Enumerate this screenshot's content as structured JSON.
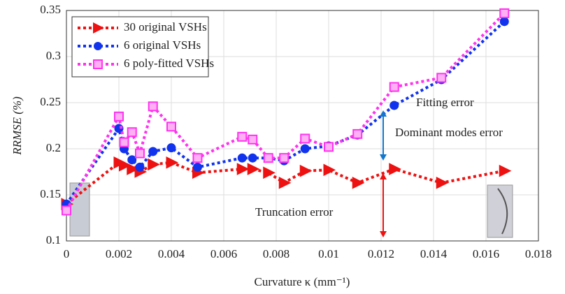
{
  "chart_data": {
    "type": "line",
    "x_label": "Curvature κ (mm⁻¹)",
    "y_label": "RRMSE (%)",
    "x": [
      0,
      0.002,
      0.0022,
      0.0025,
      0.0028,
      0.0033,
      0.004,
      0.005,
      0.0067,
      0.0071,
      0.0077,
      0.0083,
      0.0091,
      0.01,
      0.0111,
      0.0125,
      0.0143,
      0.0167
    ],
    "series": [
      {
        "name": "30 original VSHs",
        "color": "#ee1111",
        "marker": "triangle",
        "values": [
          0.14,
          0.185,
          0.182,
          0.178,
          0.175,
          0.183,
          0.185,
          0.174,
          0.178,
          0.178,
          0.174,
          0.163,
          0.176,
          0.177,
          0.163,
          0.178,
          0.163,
          0.176
        ]
      },
      {
        "name": "6 original VSHs",
        "color": "#1133ee",
        "marker": "circle",
        "values": [
          0.14,
          0.222,
          0.2,
          0.188,
          0.18,
          0.197,
          0.201,
          0.18,
          0.19,
          0.19,
          0.19,
          0.187,
          0.2,
          0.203,
          0.215,
          0.247,
          0.275,
          0.338
        ]
      },
      {
        "name": "6 poly-fitted VSHs",
        "color": "#ff33ee",
        "marker": "square",
        "values": [
          0.133,
          0.235,
          0.207,
          0.218,
          0.195,
          0.246,
          0.224,
          0.19,
          0.213,
          0.21,
          0.19,
          0.19,
          0.211,
          0.202,
          0.216,
          0.267,
          0.277,
          0.347
        ]
      }
    ],
    "xlim": [
      0,
      0.018
    ],
    "xticks": [
      0,
      0.002,
      0.004,
      0.006,
      0.008,
      0.01,
      0.012,
      0.014,
      0.016,
      0.018
    ],
    "ylim": [
      0.1,
      0.35
    ],
    "yticks": [
      0.1,
      0.15,
      0.2,
      0.25,
      0.3,
      0.35
    ],
    "grid": true,
    "legend": "upper-left",
    "annotations": [
      {
        "text": "Fitting error",
        "color": "#ff33aa"
      },
      {
        "text": "Dominant modes error",
        "color": "#1177cc"
      },
      {
        "text": "Truncation error",
        "color": "#ee1111"
      }
    ]
  }
}
